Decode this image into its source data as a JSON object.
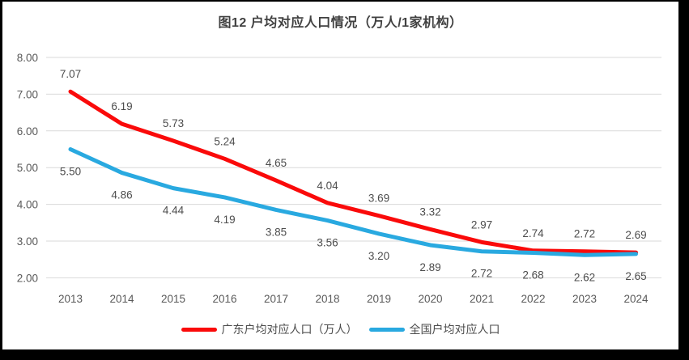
{
  "chart_data": {
    "type": "line",
    "title": "图12 户均对应人口情况（万人/1家机构）",
    "categories": [
      "2013",
      "2014",
      "2015",
      "2016",
      "2017",
      "2018",
      "2019",
      "2020",
      "2021",
      "2022",
      "2023",
      "2024"
    ],
    "series": [
      {
        "name": "广东户均对应人口（万人）",
        "color": "#fa0a0a",
        "label_position": "above",
        "values": [
          7.07,
          6.19,
          5.73,
          5.24,
          4.65,
          4.04,
          3.69,
          3.32,
          2.97,
          2.74,
          2.72,
          2.69
        ]
      },
      {
        "name": "全国户均对应人口",
        "color": "#29a9e0",
        "label_position": "below",
        "values": [
          5.5,
          4.86,
          4.44,
          4.19,
          3.85,
          3.56,
          3.2,
          2.89,
          2.72,
          2.68,
          2.62,
          2.65
        ]
      }
    ],
    "xlabel": "",
    "ylabel": "",
    "ylim": [
      2.0,
      8.0
    ],
    "y_ticks": [
      "8.00",
      "7.00",
      "6.00",
      "5.00",
      "4.00",
      "3.00",
      "2.00"
    ],
    "y_tick_values": [
      8,
      7,
      6,
      5,
      4,
      3,
      2
    ],
    "grid": true,
    "legend_position": "bottom",
    "label_decimals": 2,
    "colors": {
      "gridline": "#d9d9d9",
      "tick_text": "#595959",
      "data_label_text": "#4d4d4d",
      "title_text": "#404040",
      "frame": "#000000",
      "plot_background": "#ffffff"
    }
  }
}
